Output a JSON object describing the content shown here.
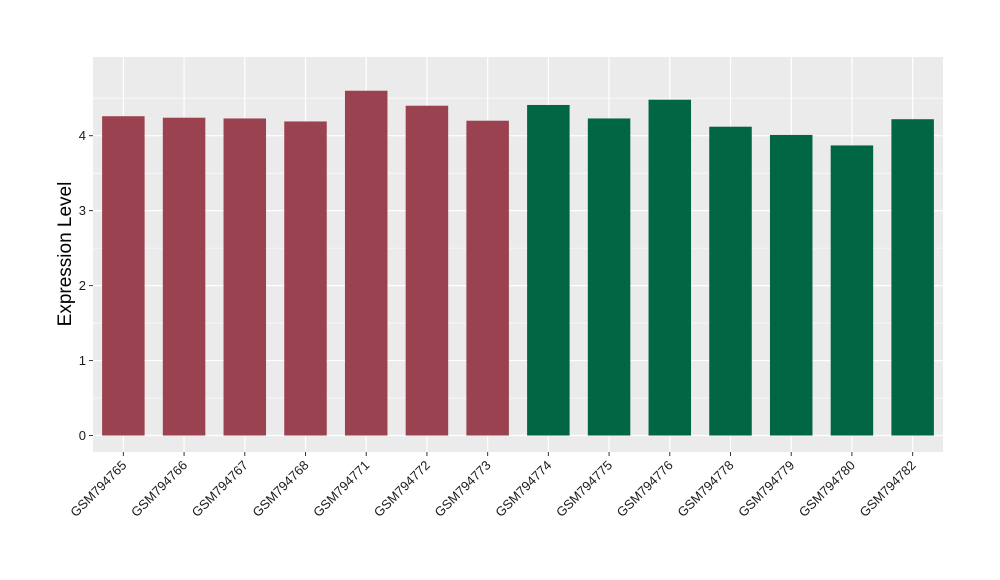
{
  "chart_data": {
    "type": "bar",
    "title": "",
    "xlabel": "",
    "ylabel": "Expression Level",
    "ylim": [
      -0.22,
      5.05
    ],
    "yticks": [
      0,
      1,
      2,
      3,
      4
    ],
    "grid": true,
    "legend": "none",
    "categories": [
      "GSM794765",
      "GSM794766",
      "GSM794767",
      "GSM794768",
      "GSM794771",
      "GSM794772",
      "GSM794773",
      "GSM794774",
      "GSM794775",
      "GSM794776",
      "GSM794778",
      "GSM794779",
      "GSM794780",
      "GSM794782"
    ],
    "values": [
      4.26,
      4.24,
      4.23,
      4.19,
      4.6,
      4.4,
      4.2,
      4.41,
      4.23,
      4.48,
      4.12,
      4.01,
      3.87,
      4.22
    ],
    "groups": [
      1,
      1,
      1,
      1,
      1,
      1,
      1,
      2,
      2,
      2,
      2,
      2,
      2,
      2
    ],
    "group_colors": [
      "#9a4250",
      "#006644"
    ],
    "panel_background": "#ebebeb",
    "gridline_color": "#ffffff"
  }
}
